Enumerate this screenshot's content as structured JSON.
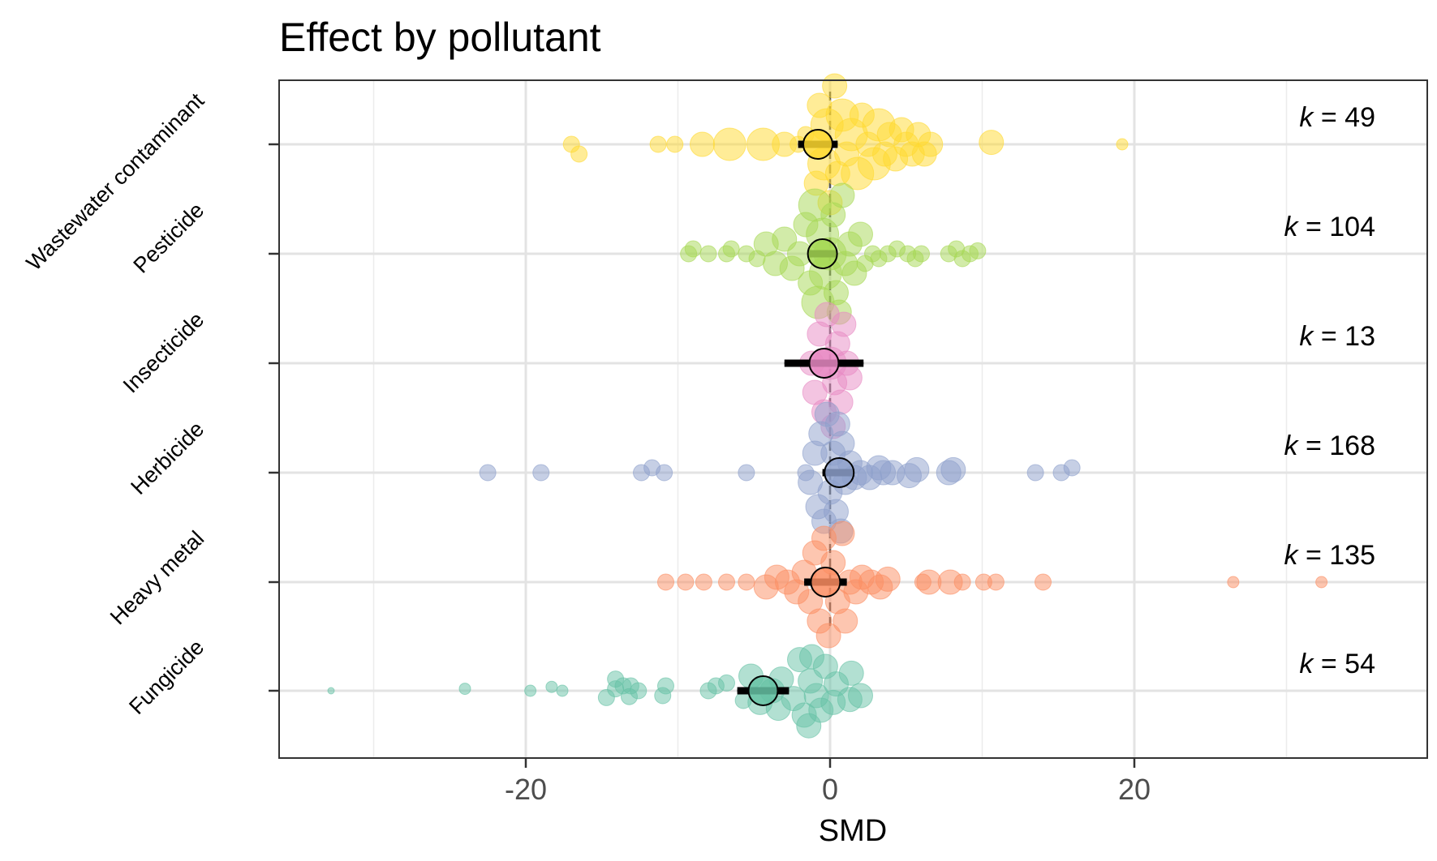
{
  "chart_data": {
    "type": "scatter",
    "subtype": "orchard-plot",
    "title": "Effect by pollutant",
    "xlabel": "SMD",
    "ylabel": "",
    "xlim": [
      -36,
      39
    ],
    "xticks": [
      -20,
      0,
      20
    ],
    "xtick_labels": [
      "-20",
      "0",
      "20"
    ],
    "grid": true,
    "legend": "none",
    "reference_line": 0,
    "categories": [
      "Wastewater contaminant",
      "Pesticide",
      "Insecticide",
      "Herbicide",
      "Heavy metal",
      "Fungicide"
    ],
    "k_labels": [
      "k = 49",
      "k = 104",
      "k = 13",
      "k = 168",
      "k = 135",
      "k = 54"
    ],
    "series": [
      {
        "category": "Wastewater contaminant",
        "k": 49,
        "color": "#FFD92F",
        "estimate": -0.8,
        "ci": [
          -2.1,
          0.5
        ],
        "pi": [
          -2.1,
          0.5
        ],
        "points": [
          [
            -17,
            0,
            2
          ],
          [
            -16.5,
            0.1,
            2
          ],
          [
            -11.3,
            0,
            2
          ],
          [
            -10.2,
            0,
            2
          ],
          [
            -8.4,
            0,
            3
          ],
          [
            -6.6,
            0,
            4
          ],
          [
            -4.4,
            0,
            4
          ],
          [
            -3,
            0,
            3
          ],
          [
            -2.1,
            0,
            2
          ],
          [
            -1.6,
            -0.1,
            2
          ],
          [
            -0.9,
            0.4,
            3
          ],
          [
            -0.7,
            -0.4,
            3
          ],
          [
            -0.4,
            0.2,
            4
          ],
          [
            -0.2,
            -0.2,
            4
          ],
          [
            0,
            0.6,
            3
          ],
          [
            0.3,
            -0.6,
            3
          ],
          [
            0.5,
            0.3,
            3
          ],
          [
            0.8,
            -0.3,
            4
          ],
          [
            1.1,
            0.1,
            3
          ],
          [
            1.4,
            -0.1,
            4
          ],
          [
            1.8,
            0.3,
            4
          ],
          [
            2.1,
            -0.3,
            3
          ],
          [
            2.5,
            0,
            3
          ],
          [
            2.9,
            0.2,
            4
          ],
          [
            3.2,
            -0.2,
            4
          ],
          [
            3.6,
            0.1,
            3
          ],
          [
            3.9,
            -0.1,
            3
          ],
          [
            4.3,
            0.15,
            3
          ],
          [
            4.7,
            -0.15,
            3
          ],
          [
            5,
            0,
            3
          ],
          [
            5.4,
            0.1,
            3
          ],
          [
            5.8,
            -0.1,
            3
          ],
          [
            6.2,
            0.1,
            3
          ],
          [
            6.6,
            0,
            3
          ],
          [
            10.6,
            -0.02,
            3
          ],
          [
            19.2,
            0,
            1
          ]
        ]
      },
      {
        "category": "Pesticide",
        "k": 104,
        "color": "#A6D854",
        "estimate": -0.5,
        "ci": [
          -1.4,
          0.4
        ],
        "pi": [
          -1.4,
          0.4
        ],
        "points": [
          [
            -9.3,
            0,
            2
          ],
          [
            -9,
            -0.05,
            2
          ],
          [
            -8,
            0,
            2
          ],
          [
            -6.8,
            0,
            2
          ],
          [
            -6.5,
            -0.05,
            2
          ],
          [
            -5.5,
            0,
            2
          ],
          [
            -4.8,
            0.05,
            2
          ],
          [
            -4.2,
            -0.1,
            3
          ],
          [
            -3.6,
            0.1,
            3
          ],
          [
            -3,
            -0.15,
            3
          ],
          [
            -2.5,
            0.15,
            3
          ],
          [
            -2,
            0,
            3
          ],
          [
            -1.6,
            -0.3,
            3
          ],
          [
            -1.3,
            0.3,
            3
          ],
          [
            -1,
            -0.5,
            4
          ],
          [
            -0.8,
            0.5,
            4
          ],
          [
            -0.5,
            -0.2,
            4
          ],
          [
            -0.3,
            0.2,
            4
          ],
          [
            0,
            0,
            4
          ],
          [
            0.2,
            -0.4,
            3
          ],
          [
            0.4,
            0.4,
            3
          ],
          [
            0.6,
            0.6,
            3
          ],
          [
            0.8,
            -0.6,
            3
          ],
          [
            1,
            0.1,
            3
          ],
          [
            1.3,
            -0.1,
            3
          ],
          [
            1.6,
            0.2,
            3
          ],
          [
            2,
            -0.2,
            3
          ],
          [
            2.3,
            0.1,
            2
          ],
          [
            2.8,
            0,
            2
          ],
          [
            3.2,
            0.05,
            2
          ],
          [
            3.8,
            0,
            2
          ],
          [
            4.4,
            -0.05,
            2
          ],
          [
            5.1,
            0,
            2
          ],
          [
            5.6,
            0.05,
            2
          ],
          [
            6,
            0,
            2
          ],
          [
            7.8,
            0,
            2
          ],
          [
            8.3,
            -0.05,
            2
          ],
          [
            8.7,
            0.05,
            2
          ],
          [
            9.2,
            0,
            2
          ],
          [
            9.7,
            -0.03,
            2
          ]
        ]
      },
      {
        "category": "Insecticide",
        "k": 13,
        "color": "#E78AC3",
        "estimate": -0.4,
        "ci": [
          -3,
          2.2
        ],
        "pi": [
          -3,
          2.2
        ],
        "points": [
          [
            -1,
            0.3,
            3
          ],
          [
            -0.7,
            -0.3,
            3
          ],
          [
            -0.4,
            0.5,
            3
          ],
          [
            -0.2,
            -0.5,
            3
          ],
          [
            0,
            0,
            4
          ],
          [
            0.3,
            0.2,
            3
          ],
          [
            0.5,
            -0.2,
            3
          ],
          [
            0.7,
            0.4,
            3
          ],
          [
            0.9,
            -0.4,
            3
          ],
          [
            1.1,
            0,
            3
          ],
          [
            1.3,
            0.15,
            3
          ],
          [
            -1.2,
            0,
            3
          ],
          [
            0.2,
            0.65,
            3
          ]
        ]
      },
      {
        "category": "Herbicide",
        "k": 168,
        "color": "#8DA0CB",
        "estimate": 0.6,
        "ci": [
          -0.5,
          1.6
        ],
        "pi": [
          -0.5,
          1.6
        ],
        "points": [
          [
            -22.5,
            0,
            2
          ],
          [
            -19,
            0,
            2
          ],
          [
            -12.4,
            0,
            2
          ],
          [
            -11.7,
            -0.05,
            2
          ],
          [
            -10.9,
            0,
            2
          ],
          [
            -5.5,
            0,
            2
          ],
          [
            -1.6,
            0,
            2
          ],
          [
            -1.3,
            0.1,
            3
          ],
          [
            -1,
            -0.2,
            3
          ],
          [
            -0.8,
            0.35,
            3
          ],
          [
            -0.6,
            -0.4,
            3
          ],
          [
            -0.4,
            0.5,
            3
          ],
          [
            -0.2,
            -0.6,
            3
          ],
          [
            0,
            0.2,
            3
          ],
          [
            0.2,
            -0.2,
            3
          ],
          [
            0.4,
            0.4,
            3
          ],
          [
            0.5,
            -0.5,
            3
          ],
          [
            0.7,
            0.6,
            3
          ],
          [
            0.8,
            -0.3,
            3
          ],
          [
            1,
            0.1,
            3
          ],
          [
            1.3,
            -0.1,
            3
          ],
          [
            1.6,
            0.05,
            3
          ],
          [
            2,
            0,
            3
          ],
          [
            2.6,
            0.05,
            3
          ],
          [
            3.2,
            -0.05,
            3
          ],
          [
            3.5,
            0,
            3
          ],
          [
            4.1,
            0,
            3
          ],
          [
            5.2,
            0.03,
            3
          ],
          [
            5.7,
            -0.03,
            3
          ],
          [
            7.8,
            0,
            3
          ],
          [
            8.1,
            -0.03,
            3
          ],
          [
            13.5,
            0,
            2
          ],
          [
            15.2,
            0,
            2
          ],
          [
            15.9,
            -0.05,
            2
          ]
        ]
      },
      {
        "category": "Heavy metal",
        "k": 135,
        "color": "#FC8D62",
        "estimate": -0.3,
        "ci": [
          -1.7,
          1.1
        ],
        "pi": [
          -1.7,
          1.1
        ],
        "points": [
          [
            -10.8,
            0,
            2
          ],
          [
            -9.5,
            0,
            2
          ],
          [
            -8.3,
            0,
            2
          ],
          [
            -6.8,
            0,
            2
          ],
          [
            -5.5,
            0,
            2
          ],
          [
            -4.2,
            0.05,
            3
          ],
          [
            -3.5,
            -0.05,
            3
          ],
          [
            -2.8,
            0,
            3
          ],
          [
            -2.2,
            0.1,
            3
          ],
          [
            -1.7,
            -0.1,
            3
          ],
          [
            -1.3,
            0.2,
            3
          ],
          [
            -1,
            -0.3,
            3
          ],
          [
            -0.7,
            0.4,
            3
          ],
          [
            -0.4,
            -0.45,
            3
          ],
          [
            -0.1,
            0.55,
            3
          ],
          [
            0.2,
            -0.2,
            3
          ],
          [
            0.5,
            0.2,
            3
          ],
          [
            0.8,
            -0.5,
            3
          ],
          [
            1,
            0.4,
            3
          ],
          [
            1.3,
            0,
            3
          ],
          [
            1.7,
            0.1,
            3
          ],
          [
            2.1,
            -0.05,
            3
          ],
          [
            2.7,
            0,
            3
          ],
          [
            3.3,
            0.05,
            3
          ],
          [
            3.8,
            -0.03,
            3
          ],
          [
            6.1,
            0,
            2
          ],
          [
            6.5,
            0,
            3
          ],
          [
            7.9,
            0,
            3
          ],
          [
            8.7,
            0,
            2
          ],
          [
            10.1,
            0,
            2
          ],
          [
            10.9,
            0,
            2
          ],
          [
            14,
            0,
            2
          ],
          [
            26.5,
            0,
            1
          ],
          [
            32.3,
            0,
            1
          ]
        ]
      },
      {
        "category": "Fungicide",
        "k": 54,
        "color": "#66C2A5",
        "estimate": -4.4,
        "ci": [
          -6.1,
          -2.7
        ],
        "pi": [
          -6.1,
          -2.7
        ],
        "points": [
          [
            -32.8,
            0,
            0
          ],
          [
            -24,
            -0.02,
            1
          ],
          [
            -19.7,
            0,
            1
          ],
          [
            -18.3,
            -0.04,
            1
          ],
          [
            -17.6,
            0,
            1
          ],
          [
            -14.7,
            0.07,
            2
          ],
          [
            -14.1,
            -0.02,
            2
          ],
          [
            -14.1,
            -0.12,
            2
          ],
          [
            -13.6,
            -0.05,
            2
          ],
          [
            -13.2,
            0.06,
            2
          ],
          [
            -13.1,
            -0.05,
            2
          ],
          [
            -12.6,
            0,
            2
          ],
          [
            -11,
            0.05,
            2
          ],
          [
            -10.8,
            -0.05,
            2
          ],
          [
            -8,
            0,
            2
          ],
          [
            -7.5,
            -0.05,
            2
          ],
          [
            -6.8,
            -0.08,
            2
          ],
          [
            -5.7,
            0.1,
            2
          ],
          [
            -5.2,
            -0.15,
            3
          ],
          [
            -4.6,
            0.12,
            3
          ],
          [
            -3.8,
            0,
            3
          ],
          [
            -3.4,
            0.18,
            3
          ],
          [
            -3.2,
            -0.12,
            3
          ],
          [
            -2.4,
            0.08,
            3
          ],
          [
            -2,
            -0.32,
            3
          ],
          [
            -1.7,
            0.25,
            3
          ],
          [
            -1.4,
            0.36,
            3
          ],
          [
            -1.3,
            -0.1,
            3
          ],
          [
            -1.2,
            -0.35,
            3
          ],
          [
            -0.9,
            0.05,
            3
          ],
          [
            -0.6,
            0.2,
            3
          ],
          [
            -0.3,
            -0.25,
            3
          ],
          [
            0.2,
            0.12,
            3
          ],
          [
            0.4,
            -0.07,
            3
          ],
          [
            1.3,
            0.09,
            3
          ],
          [
            1.4,
            -0.18,
            3
          ],
          [
            2,
            0.05,
            3
          ]
        ]
      }
    ]
  }
}
